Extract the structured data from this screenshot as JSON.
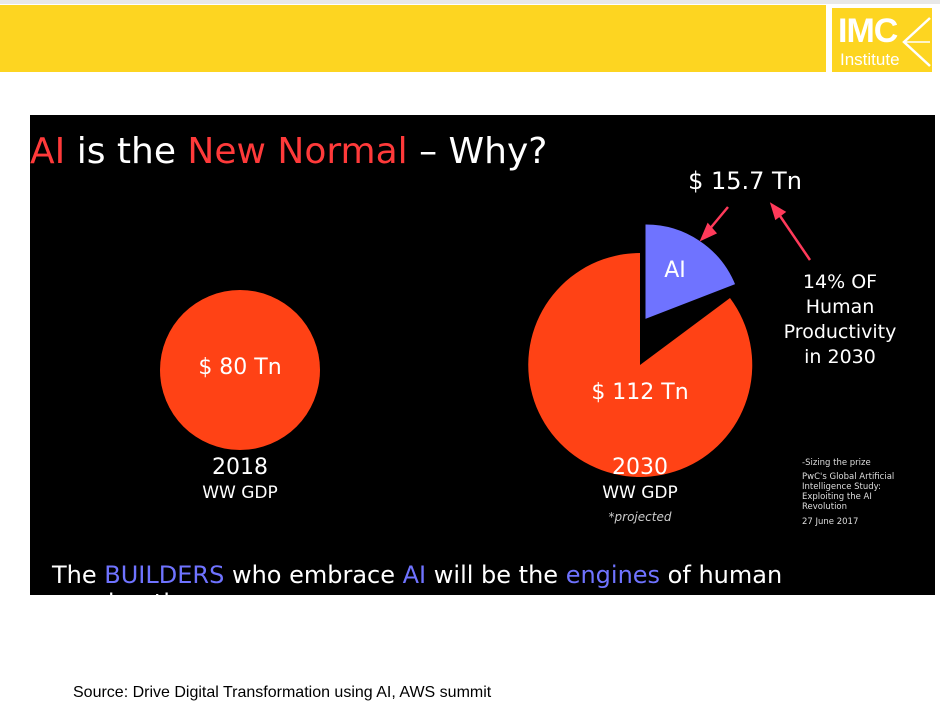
{
  "logo": {
    "main": "IMC",
    "sub": "Institute"
  },
  "title": {
    "p1": "AI",
    "p2": " is the ",
    "p3": "New Normal",
    "p4": " – Why?"
  },
  "pie2018": {
    "value": "$ 80 Tn",
    "year": "2018",
    "label": "WW GDP"
  },
  "pie2030": {
    "value": "$ 112 Tn",
    "ai": "AI",
    "year": "2030",
    "label": "WW GDP",
    "note": "*projected",
    "ai_share": 0.14
  },
  "callout": {
    "amount": "$ 15.7 Tn",
    "l1": "14% OF",
    "l2": "Human",
    "l3": "Productivity",
    "l4": "in 2030"
  },
  "reference": {
    "l1": "-Sizing the prize",
    "l2": "PwC's Global Artificial Intelligence Study: Exploiting the AI Revolution",
    "l3": "27 June 2017"
  },
  "tagline": {
    "p1": "The ",
    "p2": "BUILDERS",
    "p3": " who embrace ",
    "p4": "AI",
    "p5": " will be the ",
    "p6": "engines",
    "p7": " of human acceleration."
  },
  "source": "Source: Drive Digital Transformation using AI, AWS summit",
  "colors": {
    "yellow": "#fdd521",
    "pie": "#ff4215",
    "ai": "#6f73ff"
  }
}
